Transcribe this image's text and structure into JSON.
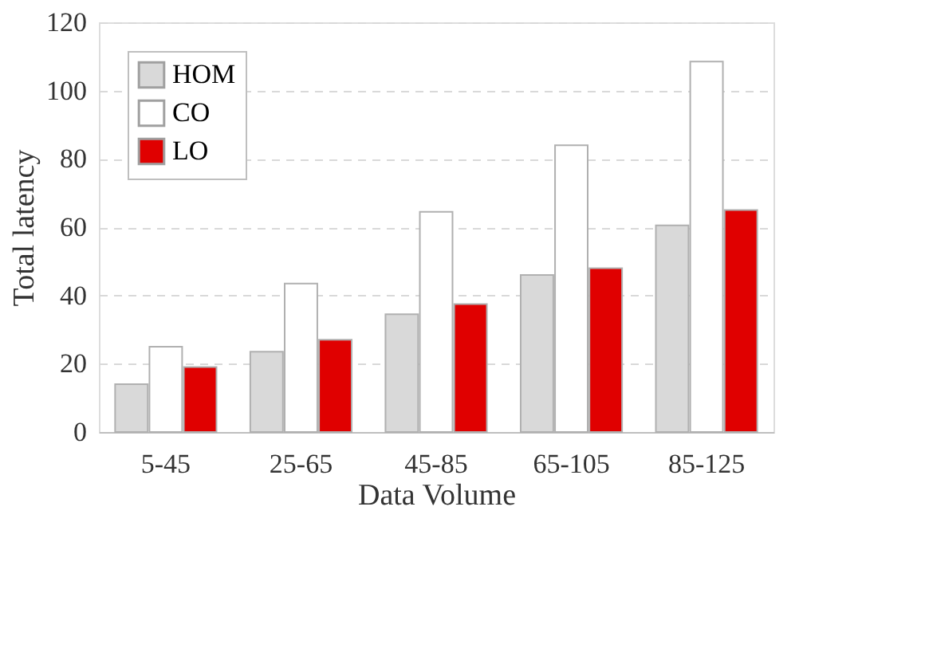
{
  "chart_data": {
    "type": "bar",
    "xlabel": "Data Volume",
    "ylabel": "Total latency",
    "categories": [
      "5-45",
      "25-65",
      "45-85",
      "65-105",
      "85-125"
    ],
    "series": [
      {
        "name": "HOM",
        "color": "#d9d9d9",
        "values": [
          14,
          23.5,
          34.5,
          46,
          60.5
        ]
      },
      {
        "name": "CO",
        "color": "#ffffff",
        "values": [
          25,
          43.5,
          64.5,
          84,
          108.5
        ]
      },
      {
        "name": "LO",
        "color": "#e00000",
        "values": [
          19,
          27,
          37.5,
          48,
          65
        ]
      }
    ],
    "ylim": [
      0,
      120
    ],
    "yticks": [
      0,
      20,
      40,
      60,
      80,
      100,
      120
    ],
    "grid": "y",
    "legend": "top left"
  }
}
